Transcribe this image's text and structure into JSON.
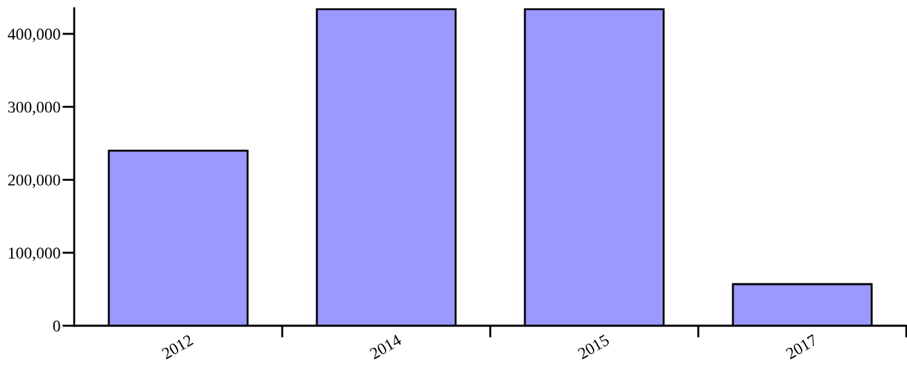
{
  "chart_data": {
    "type": "bar",
    "categories": [
      "2012",
      "2014",
      "2015",
      "2017"
    ],
    "values": [
      240000,
      434000,
      434000,
      57000
    ],
    "color": "#9999ff",
    "ylim": [
      0,
      435000
    ],
    "yticks": [
      {
        "value": 0,
        "label": "0"
      },
      {
        "value": 100000,
        "label": "100,000"
      },
      {
        "value": 200000,
        "label": "200,000"
      },
      {
        "value": 300000,
        "label": "300,000"
      },
      {
        "value": 400000,
        "label": "400,000"
      }
    ],
    "grid": false
  }
}
